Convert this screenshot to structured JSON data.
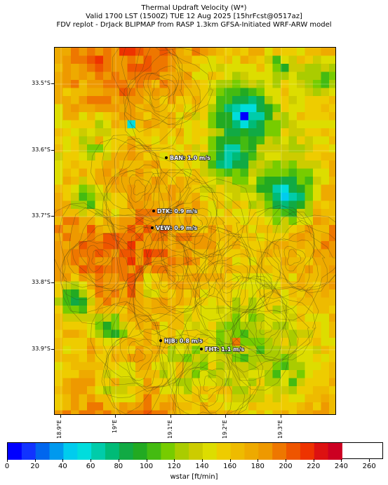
{
  "title": {
    "line1": "Thermal Updraft Velocity (W*)",
    "line2": "Valid 1700 LST (1500Z) TUE 12 Aug 2025 [15hrFcst@0517az]",
    "line3": "FDV replot - DrJack BLIPMAP from RASP 1.3km GFSA-Initiated WRF-ARW model"
  },
  "map": {
    "lat_labels": [
      "33.5°S",
      "33.6°S",
      "33.7°S",
      "33.8°S",
      "33.9°S"
    ],
    "lon_labels": [
      "18.9°E",
      "19°E",
      "19.1°E",
      "19.2°E",
      "19.3°E"
    ],
    "stations": [
      {
        "code": "BAN",
        "label": "BAN: 1.0 m/s",
        "value": 1.0,
        "unit": "m/s"
      },
      {
        "code": "DTK",
        "label": "DTK: 0.9 m/s",
        "value": 0.9,
        "unit": "m/s"
      },
      {
        "code": "VEW",
        "label": "VEW: 0.9 m/s",
        "value": 0.9,
        "unit": "m/s"
      },
      {
        "code": "HJB",
        "label": "HJB: 0.8 m/s",
        "value": 0.8,
        "unit": "m/s"
      },
      {
        "code": "FHT",
        "label": "FHT: 1.1 m/s",
        "value": 1.1,
        "unit": "m/s"
      }
    ]
  },
  "colorbar": {
    "title": "wstar [ft/min]",
    "tick_labels": [
      "0",
      "20",
      "40",
      "60",
      "80",
      "100",
      "120",
      "140",
      "160",
      "180",
      "200",
      "220",
      "240",
      "260"
    ],
    "range": [
      0,
      270
    ],
    "step": 10,
    "colors": [
      "#0000ff",
      "#1133ff",
      "#0066ee",
      "#0099ee",
      "#00ccee",
      "#00dddd",
      "#00ccaa",
      "#00bb77",
      "#11aa44",
      "#22aa22",
      "#44bb11",
      "#77cc00",
      "#aacc00",
      "#cccc00",
      "#dddd00",
      "#eecc00",
      "#eebb00",
      "#eeaa00",
      "#ee9900",
      "#ee7700",
      "#ee5500",
      "#ee3300",
      "#dd1111",
      "#cc0022"
    ]
  }
}
